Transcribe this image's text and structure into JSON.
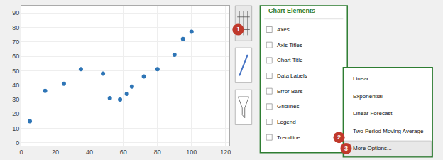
{
  "chart_data": {
    "type": "scatter",
    "x": [
      5,
      14,
      25,
      35,
      48,
      52,
      58,
      62,
      65,
      72,
      80,
      90,
      95,
      100
    ],
    "values": [
      15,
      36,
      41,
      51,
      48,
      31,
      30,
      34,
      39,
      46,
      51,
      61,
      72,
      77
    ],
    "color": "#2e75b6",
    "xlim": [
      0,
      122
    ],
    "xticks": [
      0,
      20,
      40,
      60,
      80,
      100,
      120
    ],
    "ylim": [
      -2,
      95
    ],
    "yticks": [
      0,
      10,
      20,
      30,
      40,
      50,
      60,
      70,
      80,
      90
    ],
    "grid": true,
    "annotations": [
      "1",
      "2",
      "3",
      "Chart Elements",
      "Axes",
      "Axis Titles",
      "Chart Title",
      "Data Labels",
      "Error Bars",
      "Gridlines",
      "Legend",
      "Trendline",
      "Linear",
      "Exponential",
      "Linear Forecast",
      "Two Period Moving Average",
      "More Options..."
    ]
  }
}
